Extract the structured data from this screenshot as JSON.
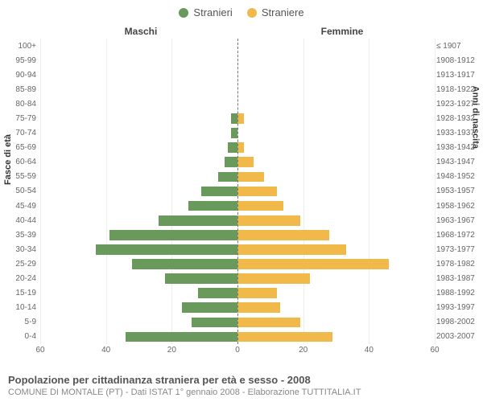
{
  "legend": {
    "male": {
      "label": "Stranieri",
      "color": "#6a9a5b"
    },
    "female": {
      "label": "Straniere",
      "color": "#f0b94a"
    }
  },
  "panel_titles": {
    "left": "Maschi",
    "right": "Femmine"
  },
  "axis_labels": {
    "left": "Fasce di età",
    "right": "Anni di nascita"
  },
  "xaxis": {
    "max": 60,
    "ticks": [
      60,
      40,
      20,
      0,
      20,
      40,
      60
    ],
    "grid_color": "#eeeeee"
  },
  "centerline_color": "#777777",
  "background_color": "#ffffff",
  "categories": [
    {
      "age": "100+",
      "birth": "≤ 1907",
      "m": 0,
      "f": 0
    },
    {
      "age": "95-99",
      "birth": "1908-1912",
      "m": 0,
      "f": 0
    },
    {
      "age": "90-94",
      "birth": "1913-1917",
      "m": 0,
      "f": 0
    },
    {
      "age": "85-89",
      "birth": "1918-1922",
      "m": 0,
      "f": 0
    },
    {
      "age": "80-84",
      "birth": "1923-1927",
      "m": 0,
      "f": 0
    },
    {
      "age": "75-79",
      "birth": "1928-1932",
      "m": 2,
      "f": 2
    },
    {
      "age": "70-74",
      "birth": "1933-1937",
      "m": 2,
      "f": 0
    },
    {
      "age": "65-69",
      "birth": "1938-1942",
      "m": 3,
      "f": 2
    },
    {
      "age": "60-64",
      "birth": "1943-1947",
      "m": 4,
      "f": 5
    },
    {
      "age": "55-59",
      "birth": "1948-1952",
      "m": 6,
      "f": 8
    },
    {
      "age": "50-54",
      "birth": "1953-1957",
      "m": 11,
      "f": 12
    },
    {
      "age": "45-49",
      "birth": "1958-1962",
      "m": 15,
      "f": 14
    },
    {
      "age": "40-44",
      "birth": "1963-1967",
      "m": 24,
      "f": 19
    },
    {
      "age": "35-39",
      "birth": "1968-1972",
      "m": 39,
      "f": 28
    },
    {
      "age": "30-34",
      "birth": "1973-1977",
      "m": 43,
      "f": 33
    },
    {
      "age": "25-29",
      "birth": "1978-1982",
      "m": 32,
      "f": 46
    },
    {
      "age": "20-24",
      "birth": "1983-1987",
      "m": 22,
      "f": 22
    },
    {
      "age": "15-19",
      "birth": "1988-1992",
      "m": 12,
      "f": 12
    },
    {
      "age": "10-14",
      "birth": "1993-1997",
      "m": 17,
      "f": 13
    },
    {
      "age": "5-9",
      "birth": "1998-2002",
      "m": 14,
      "f": 19
    },
    {
      "age": "0-4",
      "birth": "2003-2007",
      "m": 34,
      "f": 29
    }
  ],
  "caption": {
    "title": "Popolazione per cittadinanza straniera per età e sesso - 2008",
    "subtitle": "COMUNE DI MONTALE (PT) - Dati ISTAT 1° gennaio 2008 - Elaborazione TUTTITALIA.IT"
  },
  "style": {
    "bar_height_pct": 70,
    "cat_fontsize": 10,
    "tick_fontsize": 10,
    "legend_fontsize": 13,
    "title_fontsize": 12
  }
}
